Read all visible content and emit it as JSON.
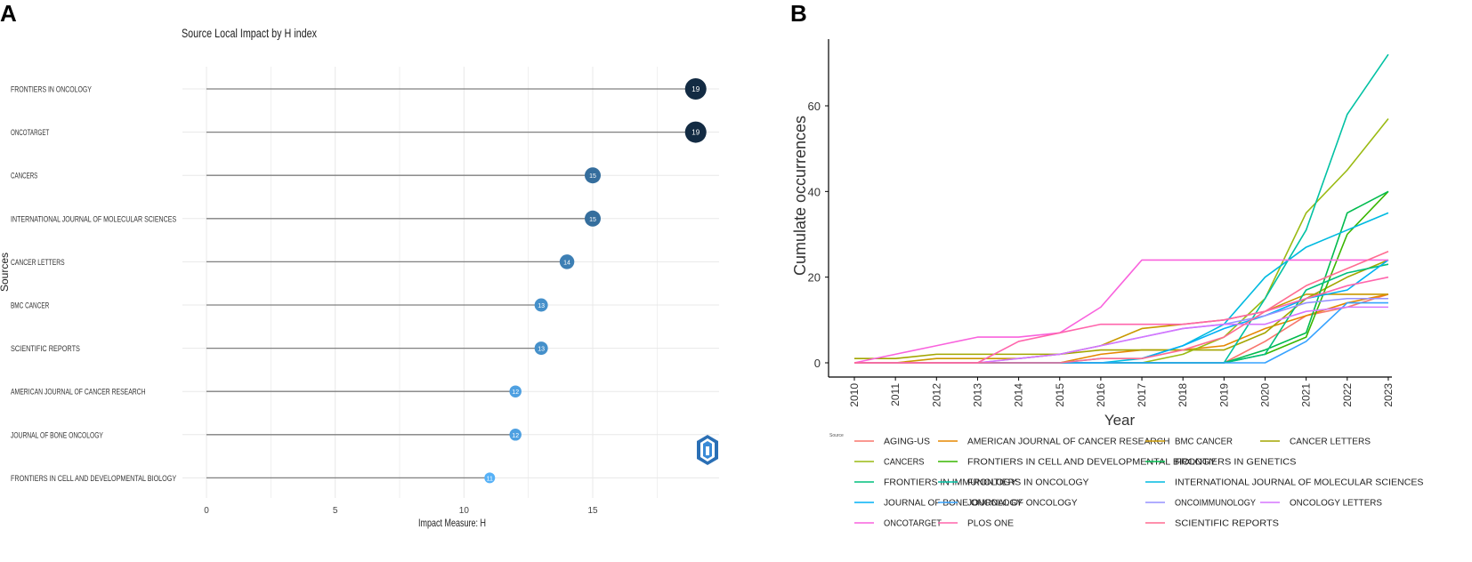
{
  "panel_labels": {
    "a": "A",
    "b": "B"
  },
  "chart_data": [
    {
      "type": "lollipop",
      "title": "Source Local Impact by H index",
      "xlabel": "Impact Measure: H",
      "ylabel": "Sources",
      "xlim": [
        0,
        19.5
      ],
      "xticks": [
        0,
        5,
        10,
        15
      ],
      "categories": [
        "FRONTIERS IN ONCOLOGY",
        "ONCOTARGET",
        "CANCERS",
        "INTERNATIONAL JOURNAL OF MOLECULAR SCIENCES",
        "CANCER LETTERS",
        "BMC CANCER",
        "SCIENTIFIC REPORTS",
        "AMERICAN JOURNAL OF CANCER RESEARCH",
        "JOURNAL OF BONE ONCOLOGY",
        "FRONTIERS IN CELL AND DEVELOPMENTAL BIOLOGY"
      ],
      "values": [
        19,
        19,
        15,
        15,
        14,
        13,
        13,
        12,
        12,
        11
      ],
      "value_labels": [
        "19",
        "19",
        "15",
        "15",
        "14",
        "13",
        "13",
        "12",
        "12",
        "11"
      ],
      "colors": {
        "high": "#132B43",
        "low": "#56B1F7",
        "stem": "#808080",
        "grid": "#e8e8e8"
      }
    },
    {
      "type": "line",
      "title": "",
      "xlabel": "Year",
      "ylabel": "Cumulate occurrences",
      "legend_title": "Source",
      "ylim": [
        -4,
        76
      ],
      "yticks": [
        0,
        20,
        40,
        60
      ],
      "ytick_labels": [
        "0",
        "20",
        "40",
        "60"
      ],
      "x": [
        "2010",
        "2011",
        "2012",
        "2013",
        "2014",
        "2015",
        "2016",
        "2017",
        "2018",
        "2019",
        "2020",
        "2021",
        "2022",
        "2023"
      ],
      "series": [
        {
          "name": "AGING-US",
          "color": "#F8766D",
          "values": [
            0,
            0,
            0,
            0,
            0,
            0,
            0,
            0,
            0,
            0,
            5,
            11,
            13,
            16
          ]
        },
        {
          "name": "AMERICAN JOURNAL OF CANCER RESEARCH",
          "color": "#E58700",
          "values": [
            0,
            0,
            0,
            0,
            0,
            0,
            2,
            3,
            3,
            4,
            8,
            11,
            14,
            16
          ]
        },
        {
          "name": "BMC CANCER",
          "color": "#C99800",
          "values": [
            0,
            0,
            1,
            1,
            1,
            2,
            4,
            8,
            9,
            10,
            12,
            16,
            16,
            16
          ]
        },
        {
          "name": "CANCER LETTERS",
          "color": "#A3A500",
          "values": [
            1,
            1,
            2,
            2,
            2,
            2,
            3,
            3,
            3,
            3,
            7,
            15,
            20,
            24
          ]
        },
        {
          "name": "CANCERS",
          "color": "#9ABA12",
          "values": [
            0,
            0,
            0,
            0,
            0,
            0,
            0,
            0,
            2,
            6,
            15,
            35,
            45,
            57
          ]
        },
        {
          "name": "FRONTIERS IN CELL AND DEVELOPMENTAL BIOLOGY",
          "color": "#39B600",
          "values": [
            0,
            0,
            0,
            0,
            0,
            0,
            0,
            0,
            0,
            0,
            2,
            6,
            30,
            40
          ]
        },
        {
          "name": "FRONTIERS IN GENETICS",
          "color": "#00BB4E",
          "values": [
            0,
            0,
            0,
            0,
            0,
            0,
            0,
            0,
            0,
            0,
            3,
            7,
            35,
            40
          ]
        },
        {
          "name": "FRONTIERS IN IMMUNOLOGY",
          "color": "#00BF7D",
          "values": [
            0,
            0,
            0,
            0,
            0,
            0,
            0,
            0,
            0,
            0,
            2,
            17,
            21,
            23
          ]
        },
        {
          "name": "FRONTIERS IN ONCOLOGY",
          "color": "#00C1A3",
          "values": [
            0,
            0,
            0,
            0,
            0,
            0,
            0,
            0,
            0,
            0,
            15,
            31,
            58,
            72
          ]
        },
        {
          "name": "INTERNATIONAL JOURNAL OF MOLECULAR SCIENCES",
          "color": "#00BAE0",
          "values": [
            0,
            0,
            0,
            0,
            0,
            0,
            0,
            1,
            4,
            9,
            20,
            27,
            31,
            35
          ]
        },
        {
          "name": "JOURNAL OF BONE ONCOLOGY",
          "color": "#00B0F6",
          "values": [
            0,
            0,
            0,
            0,
            0,
            0,
            1,
            1,
            4,
            8,
            11,
            15,
            17,
            24
          ]
        },
        {
          "name": "JOURNAL OF ONCOLOGY",
          "color": "#35A2FF",
          "values": [
            0,
            0,
            0,
            0,
            0,
            0,
            0,
            0,
            0,
            0,
            0,
            5,
            14,
            14
          ]
        },
        {
          "name": "ONCOIMMUNOLOGY",
          "color": "#9590FF",
          "values": [
            0,
            0,
            0,
            0,
            1,
            2,
            4,
            6,
            8,
            9,
            11,
            14,
            15,
            15
          ]
        },
        {
          "name": "ONCOLOGY LETTERS",
          "color": "#D575FE",
          "values": [
            0,
            0,
            0,
            0,
            1,
            2,
            4,
            6,
            8,
            9,
            9,
            12,
            13,
            13
          ]
        },
        {
          "name": "ONCOTARGET",
          "color": "#F962DD",
          "values": [
            0,
            2,
            4,
            6,
            6,
            7,
            13,
            24,
            24,
            24,
            24,
            24,
            24,
            24
          ]
        },
        {
          "name": "PLOS ONE",
          "color": "#FF65AC",
          "values": [
            0,
            0,
            0,
            0,
            5,
            7,
            9,
            9,
            9,
            10,
            12,
            15,
            18,
            20
          ]
        },
        {
          "name": "SCIENTIFIC REPORTS",
          "color": "#FF6C91",
          "values": [
            0,
            0,
            0,
            0,
            0,
            0,
            1,
            1,
            3,
            6,
            12,
            18,
            22,
            26
          ]
        }
      ]
    }
  ]
}
